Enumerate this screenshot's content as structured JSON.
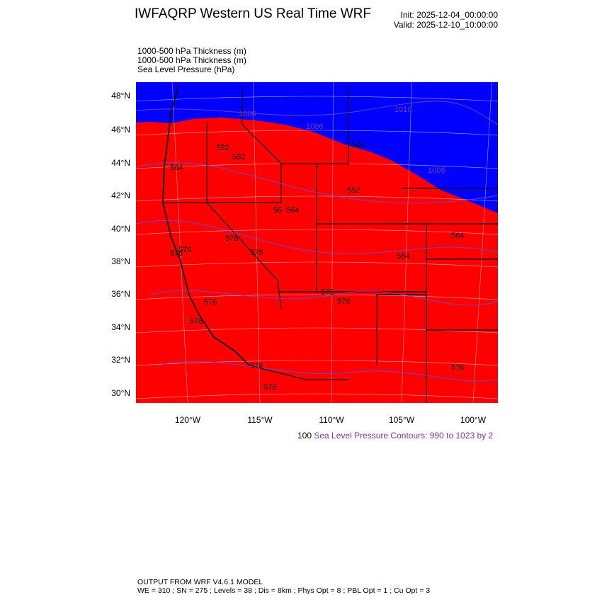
{
  "header": {
    "title": "IWFAQRP Western US Real Time WRF",
    "init": "Init: 2025-12-04_00:00:00",
    "valid": "Valid: 2025-12-10_10:00:00"
  },
  "fields": [
    "1000-500 hPa Thickness   (m)",
    "1000-500 hPa Thickness   (m)",
    "Sea Level Pressure   (hPa)"
  ],
  "map": {
    "lat_labels": [
      "48°N",
      "46°N",
      "44°N",
      "42°N",
      "40°N",
      "38°N",
      "36°N",
      "34°N",
      "32°N",
      "30°N"
    ],
    "lon_labels": [
      "120°W",
      "115°W",
      "110°W",
      "105°W",
      "100°W"
    ],
    "fill_colors": {
      "cold": "#0000ff",
      "warm": "#ff0000"
    },
    "contour_color": "#6a4ccf",
    "thickness_labels": [
      "552",
      "552",
      "564",
      "548",
      "552",
      "564",
      "56",
      "576",
      "576",
      "564",
      "564",
      "576",
      "576",
      "576",
      "576",
      "576",
      "576",
      "576",
      "576",
      "576"
    ],
    "pressure_labels": [
      "1006",
      "1010",
      "1006",
      "1008"
    ]
  },
  "legend": {
    "prefix": "100",
    "text": "Sea Level Pressure Contours: 990 to 1023 by 2",
    "color": "#7a35a8"
  },
  "footer": {
    "line1": "OUTPUT FROM WRF V4.6.1 MODEL",
    "line2": "WE = 310 ; SN = 275 ; Levels = 38 ; Dis = 8km ; Phys Opt = 8 ; PBL Opt = 1 ; Cu Opt = 3"
  }
}
